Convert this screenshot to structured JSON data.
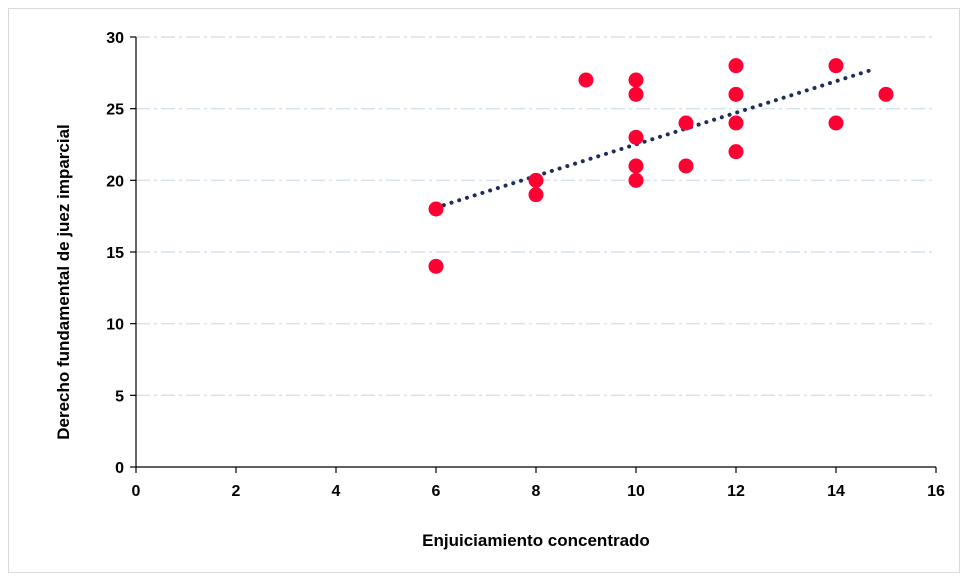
{
  "chart_data": {
    "type": "scatter",
    "title": "",
    "xlabel": "Enjuiciamiento concentrado",
    "ylabel": "Derecho fundamental de juez imparcial",
    "xlim": [
      0,
      16
    ],
    "ylim": [
      0,
      30
    ],
    "xticks": [
      0,
      2,
      4,
      6,
      8,
      10,
      12,
      14,
      16
    ],
    "yticks": [
      0,
      5,
      10,
      15,
      20,
      25,
      30
    ],
    "grid": "horizontal dash-dot",
    "legend": "none",
    "colors": {
      "points": "#ff0033",
      "trendline": "#1f2d5a",
      "grid": "#d6e2ee",
      "axis": "#000000"
    },
    "points": [
      {
        "x": 6,
        "y": 18
      },
      {
        "x": 6,
        "y": 14
      },
      {
        "x": 8,
        "y": 20
      },
      {
        "x": 8,
        "y": 19
      },
      {
        "x": 9,
        "y": 27
      },
      {
        "x": 10,
        "y": 27
      },
      {
        "x": 10,
        "y": 26
      },
      {
        "x": 10,
        "y": 23
      },
      {
        "x": 10,
        "y": 21
      },
      {
        "x": 10,
        "y": 20
      },
      {
        "x": 11,
        "y": 24
      },
      {
        "x": 11,
        "y": 21
      },
      {
        "x": 12,
        "y": 28
      },
      {
        "x": 12,
        "y": 26
      },
      {
        "x": 12,
        "y": 24
      },
      {
        "x": 12,
        "y": 22
      },
      {
        "x": 14,
        "y": 28
      },
      {
        "x": 14,
        "y": 24
      },
      {
        "x": 15,
        "y": 26
      }
    ],
    "trendline": {
      "style": "dotted",
      "from": {
        "x": 6,
        "y": 18.1
      },
      "to": {
        "x": 14.8,
        "y": 27.8
      }
    }
  }
}
